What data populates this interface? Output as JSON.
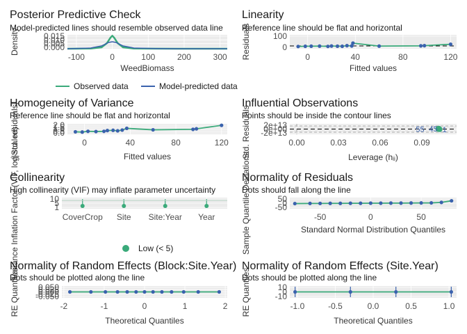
{
  "colors": {
    "green": "#3aaa7a",
    "blue": "#3a62ad",
    "panel": "#ebebeb",
    "grid": "#ffffff",
    "ref_line": "#000000",
    "text": "#1a1a1a",
    "tick": "#4d4d4d",
    "contour": "#aaaaaa"
  },
  "chart_data": [
    {
      "type": "line",
      "title": "Posterior Predictive Check",
      "subtitle": "Model-predicted lines should resemble observed data line",
      "xlabel": "WeedBiomass",
      "ylabel": "Density",
      "xticks": [
        "-100",
        "0",
        "100",
        "200",
        "300"
      ],
      "yticks": [
        "0.000",
        "0.005",
        "0.010",
        "0.015"
      ],
      "xlim": [
        -125,
        320
      ],
      "ylim": [
        0,
        0.02
      ],
      "legend": [
        "Observed data",
        "Model-predicted data"
      ],
      "legend_position": "bottom",
      "series": [
        {
          "name": "Observed data",
          "x": [
            -125,
            -60,
            -30,
            -15,
            -5,
            0,
            5,
            15,
            30,
            60,
            120,
            200,
            320
          ],
          "y": [
            0.0,
            0.0003,
            0.002,
            0.008,
            0.016,
            0.0185,
            0.016,
            0.008,
            0.002,
            0.0003,
            0.0001,
            0.0,
            0.0
          ]
        },
        {
          "name": "Model-predicted data",
          "x": [
            -125,
            -60,
            -30,
            -10,
            0,
            10,
            30,
            60,
            120,
            200,
            320
          ],
          "y": [
            0.0,
            0.001,
            0.004,
            0.009,
            0.01,
            0.009,
            0.004,
            0.001,
            0.0002,
            0.0,
            0.0
          ]
        }
      ]
    },
    {
      "type": "scatter",
      "title": "Linearity",
      "subtitle": "Reference line should be flat and horizontal",
      "xlabel": "Fitted values",
      "ylabel": "Residuals",
      "xticks": [
        "0",
        "40",
        "80",
        "120"
      ],
      "yticks": [
        "0",
        "100"
      ],
      "xlim": [
        -15,
        125
      ],
      "ylim": [
        -30,
        120
      ],
      "x": [
        -8,
        -2,
        3,
        10,
        17,
        20,
        25,
        29,
        33,
        37,
        38,
        60,
        95,
        98,
        120
      ],
      "y": [
        -6,
        -4,
        -3,
        -2,
        -5,
        -1,
        -3,
        -4,
        3,
        0,
        30,
        -2,
        1,
        3,
        18
      ]
    },
    {
      "type": "scatter",
      "title": "Homogeneity of Variance",
      "subtitle": "Reference line should be flat and horizontal",
      "xlabel": "Fitted values",
      "ylabel": "√|Std. residuals|",
      "xticks": [
        "0",
        "40",
        "80",
        "120"
      ],
      "yticks": [
        "0.0",
        "0.5",
        "1.0",
        "1.5",
        "2.0"
      ],
      "xlim": [
        -15,
        125
      ],
      "ylim": [
        0,
        2.1
      ],
      "x": [
        -8,
        -2,
        3,
        10,
        17,
        20,
        25,
        29,
        33,
        37,
        60,
        95,
        98,
        120
      ],
      "y": [
        0.5,
        0.45,
        0.6,
        0.55,
        0.6,
        0.75,
        0.8,
        0.7,
        0.85,
        1.2,
        0.9,
        1.0,
        1.1,
        1.8
      ]
    },
    {
      "type": "scatter",
      "title": "Influential Observations",
      "subtitle": "Points should be inside the contour lines",
      "xlabel": "Leverage (hᵢᵢ)",
      "ylabel": "Std. Residuals",
      "xticks": [
        "0.00",
        "0.03",
        "0.06",
        "0.09"
      ],
      "yticks": [
        "-2e+13",
        "0e+00",
        "2e+13"
      ],
      "xlim": [
        -0.005,
        0.115
      ],
      "ylim": [
        -3,
        3
      ],
      "labels": [
        "55",
        "45",
        "1"
      ],
      "x": [
        0.1017,
        0.1022,
        0.1028
      ],
      "y": [
        0.1,
        0.3,
        -0.1
      ]
    },
    {
      "type": "scatter",
      "title": "Collinearity",
      "subtitle": "High collinearity (VIF) may inflate parameter uncertainty",
      "xlabel": "",
      "ylabel": "Variance Inflation Factor (VIF, log-scaled)",
      "categories": [
        "CoverCrop",
        "Site",
        "Site:Year",
        "Year"
      ],
      "values": [
        1,
        1,
        1,
        1
      ],
      "yticks": [
        "1",
        "5",
        "10"
      ],
      "legend": [
        "Low (< 5)"
      ],
      "legend_position": "bottom"
    },
    {
      "type": "scatter",
      "title": "Normality of Residuals",
      "subtitle": "Dots should fall along the line",
      "xlabel": "Standard Normal Distribution Quantiles",
      "ylabel": "Sample Quantile Deviations",
      "xticks": [
        "-50",
        "0",
        "50"
      ],
      "yticks": [
        "-50",
        "0",
        "50"
      ],
      "xlim": [
        -80,
        85
      ],
      "ylim": [
        -70,
        70
      ],
      "x": [
        -75,
        -60,
        -50,
        -40,
        -30,
        -20,
        -10,
        0,
        10,
        20,
        30,
        40,
        50,
        60,
        70,
        80
      ],
      "y": [
        -5,
        -3,
        -3,
        -2,
        -2,
        -1,
        -1,
        0,
        0,
        1,
        1,
        2,
        3,
        4,
        10,
        30
      ]
    },
    {
      "type": "scatter",
      "title": "Normality of Random Effects (Block:Site.Year)",
      "subtitle": "Dots should be plotted along the line",
      "xlabel": "Theoretical Quantiles",
      "ylabel": "RE Quantiles",
      "xticks": [
        "-2",
        "-1",
        "0",
        "1",
        "2"
      ],
      "yticks": [
        "-0.050",
        "-0.025",
        "0.000",
        "0.025",
        "0.050"
      ],
      "xlim": [
        -2.05,
        2.05
      ],
      "ylim": [
        -0.06,
        0.06
      ],
      "x": [
        -1.85,
        -1.33,
        -0.97,
        -0.67,
        -0.43,
        -0.21,
        0.0,
        0.21,
        0.43,
        0.67,
        0.97,
        1.33,
        1.85
      ],
      "y": [
        0,
        0,
        0,
        0,
        0,
        0,
        0,
        0,
        0,
        0,
        0,
        0,
        0
      ]
    },
    {
      "type": "scatter",
      "title": "Normality of Random Effects (Site.Year)",
      "subtitle": "Dots should be plotted along the line",
      "xlabel": "Theoretical Quantiles",
      "ylabel": "RE Quantiles",
      "xticks": [
        "-1.0",
        "-0.5",
        "0.0",
        "0.5",
        "1.0"
      ],
      "yticks": [
        "-10",
        "0",
        "10"
      ],
      "xlim": [
        -1.1,
        1.1
      ],
      "ylim": [
        -12,
        12
      ],
      "x": [
        -1.03,
        -0.3,
        0.3,
        1.03
      ],
      "y": [
        0,
        0,
        0,
        0
      ]
    }
  ]
}
